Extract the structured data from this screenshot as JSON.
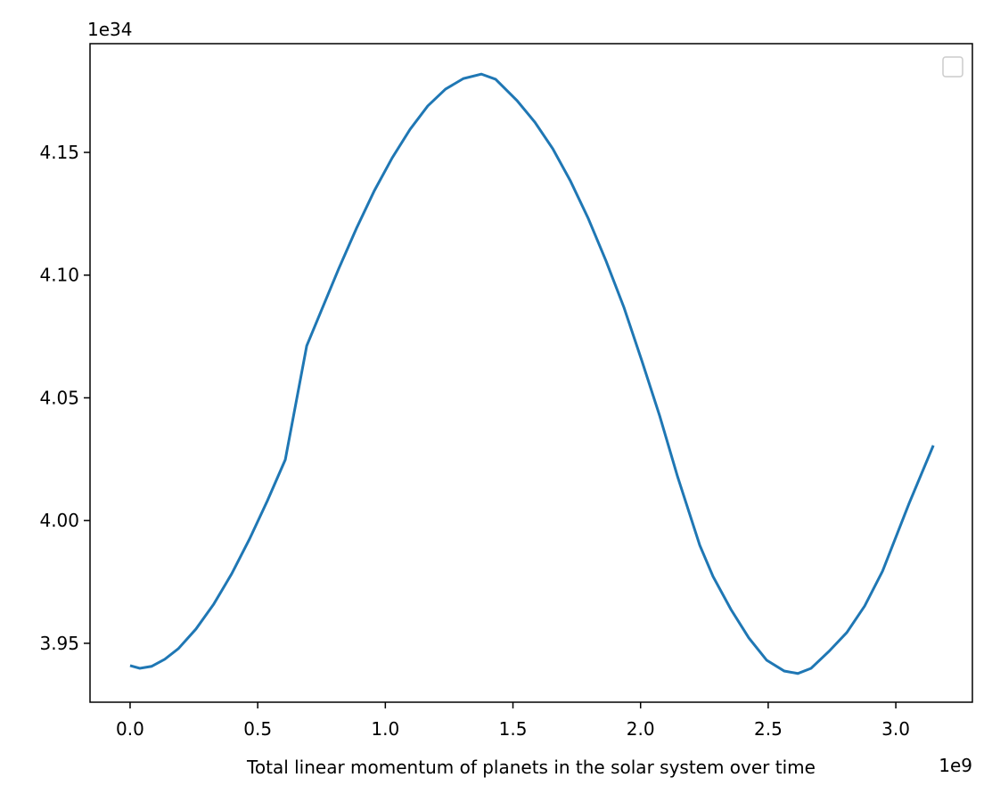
{
  "chart_data": {
    "type": "line",
    "xlabel": "Total linear momentum of planets in the solar system over time",
    "x_offset_label": "1e9",
    "y_offset_label": "1e34",
    "legend": "upper right",
    "xlim": [
      -0.157,
      3.3
    ],
    "ylim": [
      3.926,
      4.1943
    ],
    "xticks": [
      {
        "value": 0,
        "label": "0.0"
      },
      0.5,
      {
        "value": 1,
        "label": "1.0"
      },
      1.5,
      {
        "value": 2,
        "label": "2.0"
      },
      2.5,
      {
        "value": 3,
        "label": "3.0"
      }
    ],
    "yticks": [
      3.95,
      {
        "value": 4,
        "label": "4.00"
      },
      4.05,
      {
        "value": 4.1,
        "label": "4.10"
      },
      4.15
    ],
    "x": [
      0,
      0.038,
      0.084,
      0.136,
      0.189,
      0.258,
      0.328,
      0.398,
      0.468,
      0.538,
      0.608,
      0.692,
      0.747,
      0.817,
      0.887,
      0.957,
      1.027,
      1.097,
      1.166,
      1.236,
      1.306,
      1.376,
      1.432,
      1.516,
      1.586,
      1.656,
      1.725,
      1.795,
      1.865,
      1.935,
      2.005,
      2.075,
      2.145,
      2.232,
      2.284,
      2.354,
      2.424,
      2.494,
      2.563,
      2.616,
      2.668,
      2.738,
      2.808,
      2.878,
      2.948,
      3.052,
      3.147
    ],
    "series": [
      {
        "color": "#1f77b4",
        "values": [
          3.9409,
          3.9398,
          3.9406,
          3.9435,
          3.9478,
          3.9558,
          3.966,
          3.9783,
          3.9925,
          4.0081,
          4.0248,
          4.0712,
          4.085,
          4.1025,
          4.1191,
          4.1344,
          4.1478,
          4.1594,
          4.1689,
          4.1758,
          4.1801,
          4.1819,
          4.1798,
          4.1711,
          4.1623,
          4.1515,
          4.1384,
          4.1231,
          4.1057,
          4.0868,
          4.0651,
          4.0426,
          4.0179,
          3.9899,
          3.9772,
          3.9638,
          3.9522,
          3.9431,
          3.9387,
          3.9377,
          3.9398,
          3.9467,
          3.9544,
          3.9652,
          3.9794,
          4.007,
          4.0306
        ]
      }
    ]
  }
}
